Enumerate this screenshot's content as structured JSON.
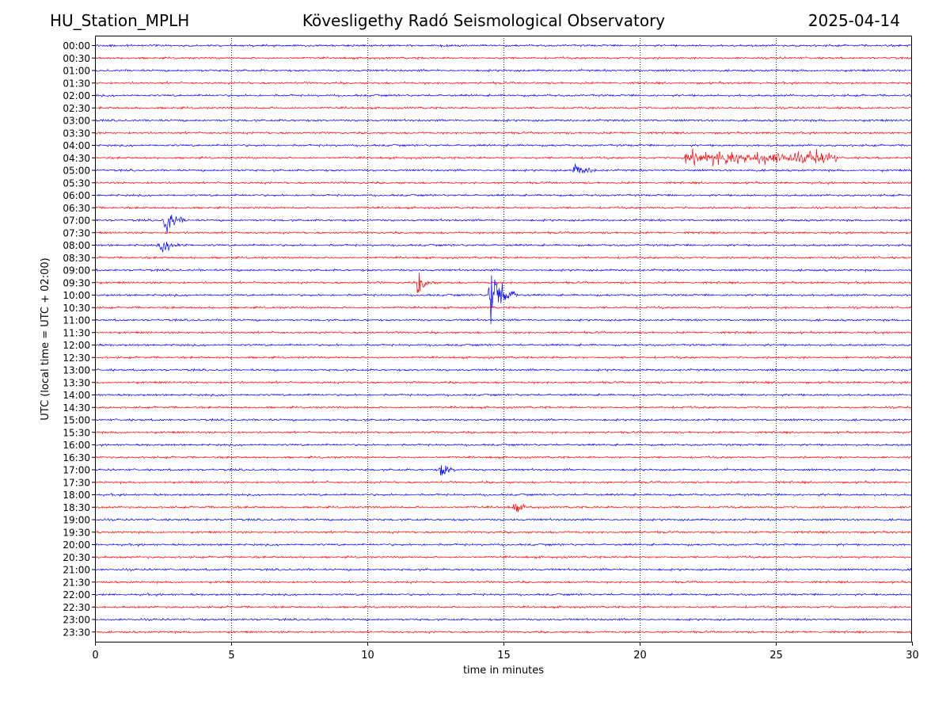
{
  "header": {
    "station": "HU_Station_MPLH",
    "observatory": "Kövesligethy Radó Seismological Observatory",
    "date": "2025-04-14"
  },
  "chart_data": {
    "type": "line",
    "title": "Kövesligethy Radó Seismological Observatory",
    "xlabel": "time in minutes",
    "ylabel": "UTC (local time = UTC + 02:00)",
    "xlim": [
      0,
      30
    ],
    "x_ticks": [
      0,
      5,
      10,
      15,
      20,
      25,
      30
    ],
    "x_grid": "dotted vertical at 5-minute ticks",
    "y_direction": "top-to-bottom",
    "trace_colors": [
      "#0000ff",
      "#ff0000"
    ],
    "rows": [
      "00:00",
      "00:30",
      "01:00",
      "01:30",
      "02:00",
      "02:30",
      "03:00",
      "03:30",
      "04:00",
      "04:30",
      "05:00",
      "05:30",
      "06:00",
      "06:30",
      "07:00",
      "07:30",
      "08:00",
      "08:30",
      "09:00",
      "09:30",
      "10:00",
      "10:30",
      "11:00",
      "11:30",
      "12:00",
      "12:30",
      "13:00",
      "13:30",
      "14:00",
      "14:30",
      "15:00",
      "15:30",
      "16:00",
      "16:30",
      "17:00",
      "17:30",
      "18:00",
      "18:30",
      "19:00",
      "19:30",
      "20:00",
      "20:30",
      "21:00",
      "21:30",
      "22:00",
      "22:30",
      "23:00",
      "23:30"
    ],
    "events": [
      {
        "row": "04:30",
        "start_min": 21.7,
        "end_min": 27.0,
        "amplitude": "moderate",
        "kind": "burst-series"
      },
      {
        "row": "05:00",
        "start_min": 17.5,
        "end_min": 18.5,
        "amplitude": "small"
      },
      {
        "row": "07:00",
        "start_min": 2.5,
        "end_min": 3.2,
        "amplitude": "large"
      },
      {
        "row": "08:00",
        "start_min": 2.3,
        "end_min": 3.3,
        "amplitude": "small"
      },
      {
        "row": "09:30",
        "start_min": 11.8,
        "end_min": 12.3,
        "amplitude": "large"
      },
      {
        "row": "10:00",
        "start_min": 14.4,
        "end_min": 15.3,
        "amplitude": "very large"
      },
      {
        "row": "17:00",
        "start_min": 12.6,
        "end_min": 13.2,
        "amplitude": "moderate"
      },
      {
        "row": "18:30",
        "start_min": 15.3,
        "end_min": 15.9,
        "amplitude": "small"
      }
    ]
  }
}
